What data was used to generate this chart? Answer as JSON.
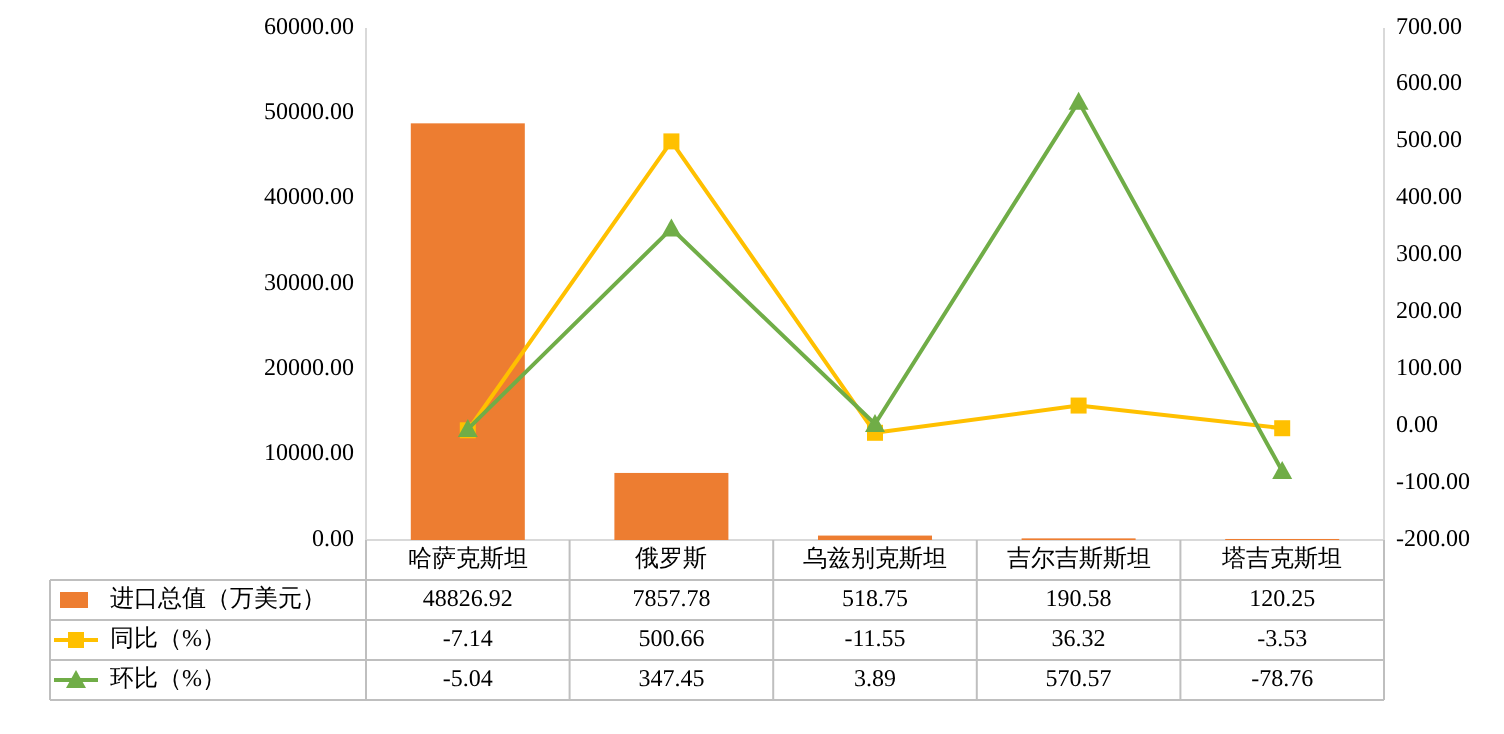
{
  "chart_data": {
    "type": "bar",
    "categories": [
      "哈萨克斯坦",
      "俄罗斯",
      "乌兹别克斯坦",
      "吉尔吉斯斯坦",
      "塔吉克斯坦"
    ],
    "series": [
      {
        "name": "进口总值（万美元）",
        "color": "#ed7d31",
        "values": [
          48826.92,
          7857.78,
          518.75,
          190.58,
          120.25
        ]
      },
      {
        "name": "同比（%）",
        "type": "line",
        "axis": "y2",
        "color": "#ffc000",
        "marker": "square",
        "values": [
          -7.14,
          500.66,
          -11.55,
          36.32,
          -3.53
        ]
      },
      {
        "name": "环比（%）",
        "type": "line",
        "axis": "y2",
        "color": "#70ad47",
        "marker": "triangle",
        "values": [
          -5.04,
          347.45,
          3.89,
          570.57,
          -78.76
        ]
      }
    ],
    "ylim": [
      0,
      60000
    ],
    "yticks": [
      {
        "value": 0,
        "label": "0.00"
      },
      {
        "value": 10000,
        "label": "10000.00"
      },
      {
        "value": 20000,
        "label": "20000.00"
      },
      {
        "value": 30000,
        "label": "30000.00"
      },
      {
        "value": 40000,
        "label": "40000.00"
      },
      {
        "value": 50000,
        "label": "50000.00"
      },
      {
        "value": 60000,
        "label": "60000.00"
      }
    ],
    "y2lim": [
      -200,
      700
    ],
    "y2ticks": [
      {
        "value": -200,
        "label": "-200.00"
      },
      {
        "value": -100,
        "label": "-100.00"
      },
      {
        "value": 0,
        "label": "0.00"
      },
      {
        "value": 100,
        "label": "100.00"
      },
      {
        "value": 200,
        "label": "200.00"
      },
      {
        "value": 300,
        "label": "300.00"
      },
      {
        "value": 400,
        "label": "400.00"
      },
      {
        "value": 500,
        "label": "500.00"
      },
      {
        "value": 600,
        "label": "600.00"
      },
      {
        "value": 700,
        "label": "700.00"
      }
    ],
    "data_labels": true,
    "legend": "bottom"
  }
}
